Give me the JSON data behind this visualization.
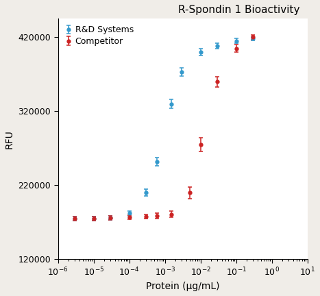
{
  "title": "R-Spondin 1 Bioactivity",
  "xlabel": "Protein (μg/mL)",
  "ylabel": "RFU",
  "xlim_log": [
    -6,
    1
  ],
  "ylim": [
    120000,
    445000
  ],
  "yticks": [
    120000,
    220000,
    320000,
    420000
  ],
  "ytick_labels": [
    "120000",
    "220000",
    "320000",
    "420000"
  ],
  "blue_color": "#3399CC",
  "red_color": "#CC2222",
  "blue_label": "R&D Systems",
  "red_label": "Competitor",
  "blue_x": [
    3e-06,
    1e-05,
    3e-05,
    0.0001,
    0.0003,
    0.0006,
    0.0015,
    0.003,
    0.01,
    0.03,
    0.1,
    0.3
  ],
  "blue_y": [
    175000,
    175000,
    176000,
    182000,
    210000,
    252000,
    330000,
    373000,
    400000,
    408000,
    415000,
    418000
  ],
  "blue_yerr": [
    2500,
    2500,
    2500,
    3500,
    4500,
    5500,
    6000,
    5500,
    4500,
    3500,
    3500,
    2500
  ],
  "red_x": [
    3e-06,
    1e-05,
    3e-05,
    0.0001,
    0.0003,
    0.0006,
    0.0015,
    0.005,
    0.01,
    0.03,
    0.1,
    0.3
  ],
  "red_y": [
    175000,
    175000,
    176000,
    177000,
    178000,
    179000,
    181000,
    210000,
    275000,
    360000,
    405000,
    420000
  ],
  "red_yerr": [
    2500,
    2500,
    2500,
    2500,
    3000,
    3500,
    4000,
    8000,
    9000,
    7000,
    5500,
    3500
  ],
  "title_fontsize": 11,
  "axis_label_fontsize": 10,
  "tick_label_fontsize": 9,
  "legend_fontsize": 9,
  "background_color": "#ffffff",
  "fig_bg_color": "#f0ede8"
}
